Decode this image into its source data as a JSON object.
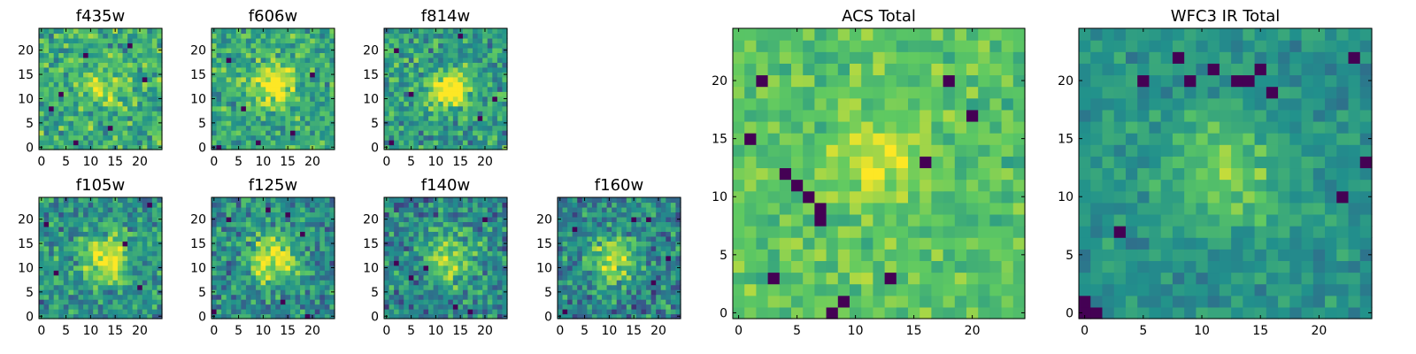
{
  "figure": {
    "colormap": "viridis",
    "colors": [
      "#440154",
      "#3b528b",
      "#21918c",
      "#5ec962",
      "#fde725"
    ],
    "frame_color": "#000000",
    "background": "#ffffff"
  },
  "chart_data": [
    {
      "id": "f435w",
      "type": "heatmap",
      "title": "f435w",
      "grid_size": [
        25,
        25
      ],
      "xlim": [
        0,
        24
      ],
      "ylim": [
        0,
        24
      ],
      "xticks": [
        "0",
        "5",
        "10",
        "15",
        "20"
      ],
      "yticks": [
        "0",
        "5",
        "10",
        "15",
        "20"
      ],
      "center": [
        13,
        12
      ],
      "peak": 0.6,
      "sigma": 3.0,
      "noise": 0.3,
      "base": 0.62,
      "seed": 11,
      "dark_pixels": [
        [
          4,
          11
        ],
        [
          2,
          8
        ],
        [
          9,
          19
        ],
        [
          18,
          21
        ],
        [
          14,
          4
        ],
        [
          7,
          1
        ],
        [
          21,
          14
        ]
      ]
    },
    {
      "id": "f606w",
      "type": "heatmap",
      "title": "f606w",
      "grid_size": [
        25,
        25
      ],
      "xlim": [
        0,
        24
      ],
      "ylim": [
        0,
        24
      ],
      "xticks": [
        "0",
        "5",
        "10",
        "15",
        "20"
      ],
      "yticks": [
        "0",
        "5",
        "10",
        "15",
        "20"
      ],
      "center": [
        12,
        13
      ],
      "peak": 0.9,
      "sigma": 3.0,
      "noise": 0.28,
      "base": 0.6,
      "seed": 23,
      "dark_pixels": [
        [
          3,
          18
        ],
        [
          6,
          8
        ],
        [
          20,
          15
        ],
        [
          16,
          3
        ],
        [
          1,
          0
        ],
        [
          9,
          1
        ]
      ]
    },
    {
      "id": "f814w",
      "type": "heatmap",
      "title": "f814w",
      "grid_size": [
        25,
        25
      ],
      "xlim": [
        0,
        24
      ],
      "ylim": [
        0,
        24
      ],
      "xticks": [
        "0",
        "5",
        "10",
        "15",
        "20"
      ],
      "yticks": [
        "0",
        "5",
        "10",
        "15",
        "20"
      ],
      "center": [
        13,
        12
      ],
      "peak": 1.3,
      "sigma": 2.6,
      "noise": 0.3,
      "base": 0.55,
      "seed": 37,
      "dark_pixels": [
        [
          5,
          11
        ],
        [
          2,
          20
        ],
        [
          19,
          6
        ],
        [
          15,
          23
        ],
        [
          1,
          1
        ],
        [
          22,
          10
        ]
      ]
    },
    {
      "id": "f105w",
      "type": "heatmap",
      "title": "f105w",
      "grid_size": [
        25,
        25
      ],
      "xlim": [
        0,
        24
      ],
      "ylim": [
        0,
        24
      ],
      "xticks": [
        "0",
        "5",
        "10",
        "15",
        "20"
      ],
      "yticks": [
        "0",
        "5",
        "10",
        "15",
        "20"
      ],
      "center": [
        13,
        12
      ],
      "peak": 1.0,
      "sigma": 3.5,
      "noise": 0.3,
      "base": 0.5,
      "seed": 41,
      "dark_pixels": [
        [
          22,
          23
        ],
        [
          3,
          9
        ],
        [
          1,
          19
        ],
        [
          17,
          15
        ],
        [
          20,
          6
        ]
      ]
    },
    {
      "id": "f125w",
      "type": "heatmap",
      "title": "f125w",
      "grid_size": [
        25,
        25
      ],
      "xlim": [
        0,
        24
      ],
      "ylim": [
        0,
        24
      ],
      "xticks": [
        "0",
        "5",
        "10",
        "15",
        "20"
      ],
      "yticks": [
        "0",
        "5",
        "10",
        "15",
        "20"
      ],
      "center": [
        12,
        12
      ],
      "peak": 1.0,
      "sigma": 3.5,
      "noise": 0.3,
      "base": 0.48,
      "seed": 53,
      "dark_pixels": [
        [
          11,
          22
        ],
        [
          15,
          21
        ],
        [
          0,
          1
        ],
        [
          18,
          17
        ],
        [
          3,
          20
        ],
        [
          14,
          3
        ],
        [
          19,
          0
        ]
      ]
    },
    {
      "id": "f140w",
      "type": "heatmap",
      "title": "f140w",
      "grid_size": [
        25,
        25
      ],
      "xlim": [
        0,
        24
      ],
      "ylim": [
        0,
        24
      ],
      "xticks": [
        "0",
        "5",
        "10",
        "15",
        "20"
      ],
      "yticks": [
        "0",
        "5",
        "10",
        "15",
        "20"
      ],
      "center": [
        13,
        12
      ],
      "peak": 0.9,
      "sigma": 3.6,
      "noise": 0.32,
      "base": 0.45,
      "seed": 67,
      "dark_pixels": [
        [
          2,
          11
        ],
        [
          8,
          10
        ],
        [
          14,
          2
        ],
        [
          20,
          20
        ],
        [
          17,
          1
        ],
        [
          5,
          8
        ]
      ]
    },
    {
      "id": "f160w",
      "type": "heatmap",
      "title": "f160w",
      "grid_size": [
        25,
        25
      ],
      "xlim": [
        0,
        24
      ],
      "ylim": [
        0,
        24
      ],
      "xticks": [
        "0",
        "5",
        "10",
        "15",
        "20"
      ],
      "yticks": [
        "0",
        "5",
        "10",
        "15",
        "20"
      ],
      "center": [
        11,
        12
      ],
      "peak": 1.0,
      "sigma": 3.2,
      "noise": 0.32,
      "base": 0.45,
      "seed": 79,
      "dark_pixels": [
        [
          15,
          20
        ],
        [
          18,
          20
        ],
        [
          22,
          12
        ],
        [
          1,
          1
        ],
        [
          3,
          18
        ],
        [
          19,
          7
        ]
      ]
    },
    {
      "id": "acs_total",
      "type": "heatmap",
      "title": "ACS Total",
      "grid_size": [
        25,
        25
      ],
      "xlim": [
        0,
        24
      ],
      "ylim": [
        0,
        24
      ],
      "xticks": [
        "0",
        "5",
        "10",
        "15",
        "20"
      ],
      "yticks": [
        "0",
        "5",
        "10",
        "15",
        "20"
      ],
      "center": [
        12,
        13
      ],
      "peak": 0.5,
      "sigma": 2.6,
      "noise": 0.18,
      "base": 0.72,
      "seed": 97,
      "dark_pixels": [
        [
          2,
          20
        ],
        [
          4,
          12
        ],
        [
          5,
          11
        ],
        [
          6,
          10
        ],
        [
          7,
          9
        ],
        [
          7,
          8
        ],
        [
          3,
          3
        ],
        [
          16,
          13
        ],
        [
          13,
          3
        ],
        [
          18,
          20
        ],
        [
          1,
          15
        ],
        [
          8,
          0
        ],
        [
          20,
          17
        ],
        [
          9,
          1
        ]
      ]
    },
    {
      "id": "wfc3_ir_total",
      "type": "heatmap",
      "title": "WFC3 IR Total",
      "grid_size": [
        25,
        25
      ],
      "xlim": [
        0,
        24
      ],
      "ylim": [
        0,
        24
      ],
      "xticks": [
        "0",
        "5",
        "10",
        "15",
        "20"
      ],
      "yticks": [
        "0",
        "5",
        "10",
        "15",
        "20"
      ],
      "center": [
        12,
        12
      ],
      "peak": 0.6,
      "sigma": 3.6,
      "noise": 0.16,
      "base": 0.5,
      "seed": 113,
      "dark_pixels": [
        [
          5,
          20
        ],
        [
          9,
          20
        ],
        [
          13,
          20
        ],
        [
          14,
          20
        ],
        [
          15,
          21
        ],
        [
          0,
          0
        ],
        [
          0,
          1
        ],
        [
          1,
          0
        ],
        [
          3,
          7
        ],
        [
          22,
          10
        ],
        [
          24,
          13
        ],
        [
          16,
          19
        ],
        [
          11,
          21
        ],
        [
          8,
          22
        ],
        [
          23,
          22
        ]
      ]
    }
  ]
}
